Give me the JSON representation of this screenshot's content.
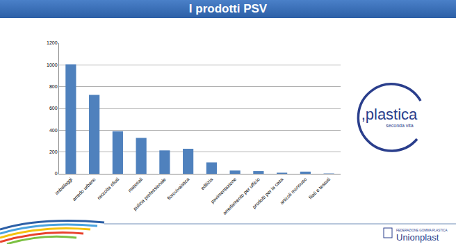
{
  "chart_data": {
    "type": "bar",
    "title": "I prodotti PSV",
    "categories": [
      "imballaggi",
      "arredo urbano",
      "raccolta rifiuti",
      "materiali",
      "pulizia professionale",
      "florovivaistica",
      "edilizia",
      "pavimentazione",
      "arredamento per ufficio",
      "prodotti per la casa",
      "articoli monouso",
      "filati e tessuti"
    ],
    "values": [
      1005,
      725,
      390,
      330,
      215,
      230,
      105,
      30,
      25,
      10,
      20,
      3
    ],
    "color": "#4f81bd",
    "ylim": [
      0,
      1200
    ],
    "yticks": [
      0,
      200,
      400,
      600,
      800,
      1000,
      1200
    ],
    "grid": true
  },
  "logos": {
    "plastica": {
      "name": ",plastica",
      "tagline": "seconda vita"
    },
    "unionplast": {
      "line1": "FEDERAZIONE GOMMA PLASTICA",
      "line2": "Unionplast"
    }
  }
}
